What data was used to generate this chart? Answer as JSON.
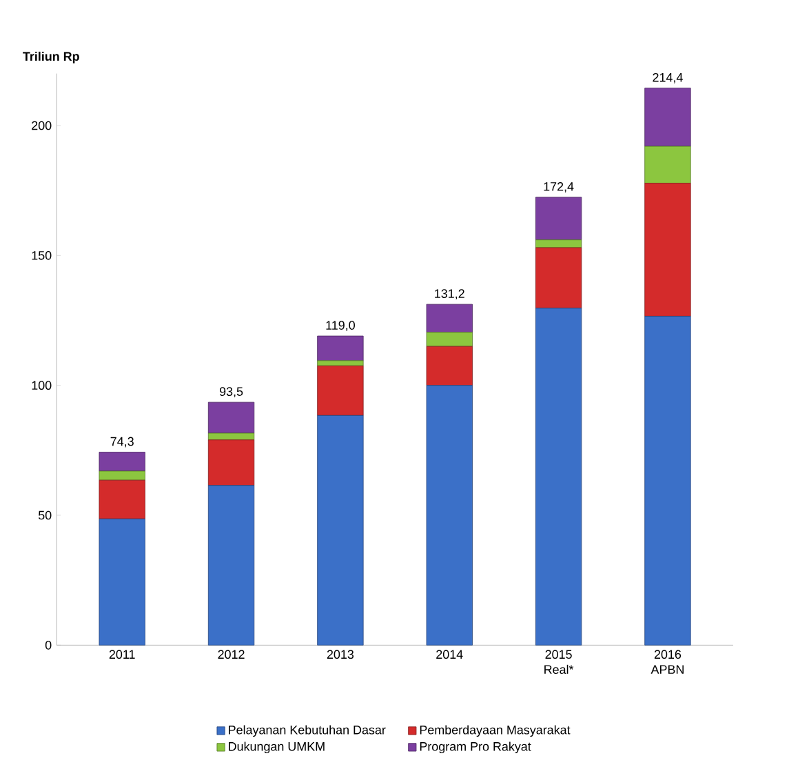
{
  "chart_data": {
    "type": "bar",
    "stacked": true,
    "ylabel": "Triliun Rp",
    "categories": [
      "2011",
      "2012",
      "2013",
      "2014",
      "2015 Real*",
      "2016 APBN"
    ],
    "series": [
      {
        "name": "Pelayanan Kebutuhan Dasar",
        "color": "#3b70c8",
        "values": [
          48.6,
          61.5,
          88.4,
          100,
          129.7,
          126.6
        ]
      },
      {
        "name": "Pemberdayaan Masyarakat",
        "color": "#d42b2b",
        "values": [
          14.9,
          17.5,
          19.1,
          15,
          23.3,
          51.2
        ]
      },
      {
        "name": "Dukungan UMKM",
        "color": "#8cc63f",
        "values": [
          3.5,
          2.6,
          2,
          5.4,
          3,
          14.2
        ]
      },
      {
        "name": "Program Pro Rakyat",
        "color": "#7b3fa0",
        "values": [
          7.3,
          11.9,
          9.5,
          10.8,
          16.4,
          22.4
        ]
      }
    ],
    "totals": [
      "74,3",
      "93,5",
      "119,0",
      "131,2",
      "172,4",
      "214,4"
    ],
    "ylim": [
      0,
      220
    ],
    "yticks": [
      0,
      50,
      100,
      150,
      200
    ],
    "grid": false,
    "legend": "bottom"
  }
}
